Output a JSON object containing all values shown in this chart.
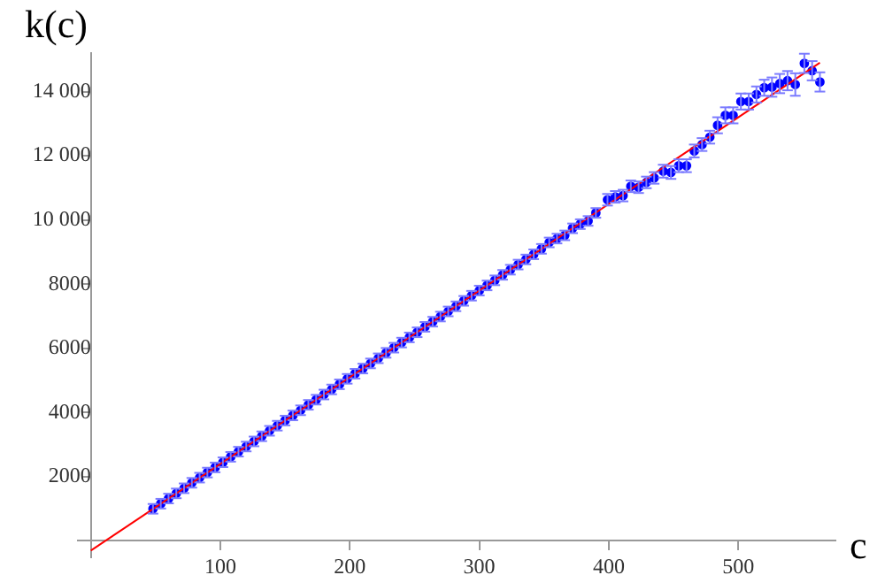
{
  "chart_data": {
    "type": "scatter",
    "xlabel": "c",
    "ylabel": "k(c)",
    "marker": "circle",
    "grid": false,
    "legend": false,
    "xlim": [
      -10,
      575
    ],
    "ylim": [
      -500,
      15200
    ],
    "xticks": [
      100,
      200,
      300,
      400,
      500
    ],
    "yticks": [
      2000,
      4000,
      6000,
      8000,
      {
        "value": 10000,
        "label": "10 000"
      },
      {
        "value": 12000,
        "label": "12 000"
      },
      {
        "value": 14000,
        "label": "14 000"
      }
    ],
    "series": [
      {
        "type": "scatter",
        "color": "#0000ff",
        "x": [
          48,
          54,
          60,
          66,
          72,
          78,
          84,
          90,
          96,
          102,
          108,
          114,
          120,
          126,
          132,
          138,
          144,
          150,
          156,
          162,
          168,
          174,
          180,
          186,
          192,
          198,
          204,
          210,
          216,
          222,
          228,
          234,
          240,
          246,
          252,
          258,
          264,
          270,
          276,
          282,
          288,
          294,
          300,
          306,
          312,
          318,
          324,
          330,
          336,
          342,
          348,
          354,
          360,
          366,
          372,
          378,
          384,
          390,
          399,
          405,
          411,
          417,
          423,
          429,
          435,
          442,
          448,
          454,
          460,
          466,
          472,
          478,
          484,
          490,
          496,
          502,
          508,
          514,
          520,
          526,
          532,
          538,
          544,
          551,
          557,
          563
        ],
        "values": [
          1000,
          1160,
          1320,
          1480,
          1640,
          1810,
          1970,
          2130,
          2290,
          2450,
          2620,
          2780,
          2940,
          3100,
          3260,
          3430,
          3590,
          3750,
          3910,
          4070,
          4240,
          4400,
          4560,
          4720,
          4880,
          5050,
          5210,
          5370,
          5530,
          5690,
          5860,
          6020,
          6180,
          6340,
          6500,
          6670,
          6830,
          6990,
          7150,
          7310,
          7480,
          7640,
          7800,
          7960,
          8120,
          8290,
          8450,
          8610,
          8770,
          8930,
          9100,
          9300,
          9420,
          9520,
          9740,
          9870,
          9970,
          10220,
          10630,
          10720,
          10760,
          11050,
          11020,
          11170,
          11310,
          11520,
          11480,
          11690,
          11690,
          12150,
          12350,
          12580,
          12950,
          13260,
          13260,
          13690,
          13690,
          13910,
          14120,
          14140,
          14250,
          14340,
          14220,
          14880,
          14650,
          14300
        ],
        "errors": [
          150,
          150,
          150,
          150,
          150,
          150,
          150,
          150,
          150,
          150,
          150,
          150,
          150,
          150,
          150,
          150,
          150,
          150,
          150,
          150,
          150,
          150,
          150,
          150,
          150,
          150,
          150,
          150,
          150,
          150,
          150,
          150,
          150,
          150,
          150,
          150,
          150,
          150,
          150,
          150,
          150,
          150,
          150,
          150,
          150,
          150,
          150,
          150,
          150,
          150,
          150,
          150,
          150,
          150,
          150,
          150,
          150,
          150,
          180,
          180,
          180,
          180,
          180,
          180,
          180,
          200,
          200,
          200,
          200,
          200,
          200,
          200,
          250,
          250,
          250,
          250,
          250,
          250,
          250,
          300,
          300,
          300,
          350,
          300,
          300,
          300
        ]
      },
      {
        "type": "line",
        "color": "#ff0000",
        "marker": "none",
        "x": [
          0,
          563
        ],
        "values": [
          -300,
          14900
        ]
      }
    ]
  }
}
